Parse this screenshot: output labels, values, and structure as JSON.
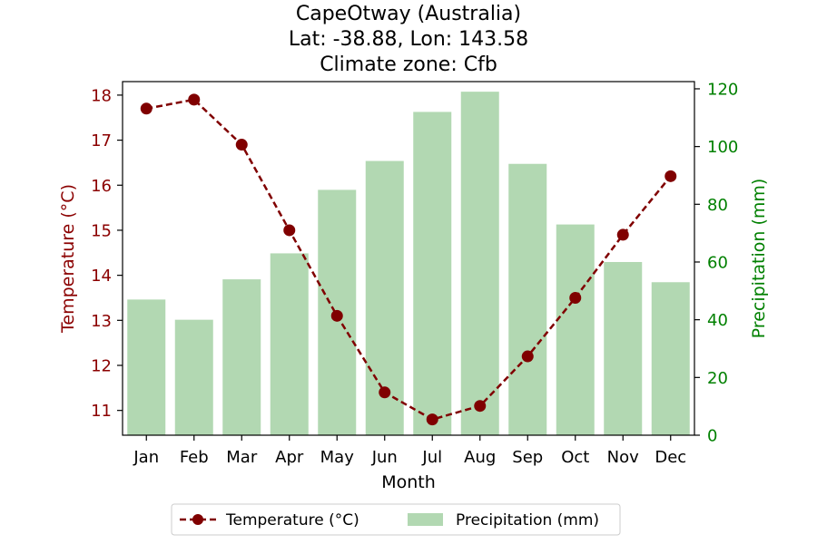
{
  "chart_data": {
    "type": "bar+line",
    "title": [
      "CapeOtway (Australia)",
      "Lat: -38.88, Lon: 143.58",
      "Climate zone: Cfb"
    ],
    "categories": [
      "Jan",
      "Feb",
      "Mar",
      "Apr",
      "May",
      "Jun",
      "Jul",
      "Aug",
      "Sep",
      "Oct",
      "Nov",
      "Dec"
    ],
    "xlabel": "Month",
    "ylabel_left": "Temperature (°C)",
    "ylabel_right": "Precipitation (mm)",
    "ylim_left": [
      10.45,
      18.3
    ],
    "ylim_right": [
      0,
      122.5
    ],
    "yticks_left": [
      11,
      12,
      13,
      14,
      15,
      16,
      17,
      18
    ],
    "yticks_right": [
      0,
      20,
      40,
      60,
      80,
      100,
      120
    ],
    "legend_position": "bottom-center",
    "grid": false,
    "series": [
      {
        "name": "Temperature (°C)",
        "type": "line",
        "axis": "left",
        "color": "#800000",
        "linestyle": "dashed",
        "marker": "circle",
        "values": [
          17.7,
          17.9,
          16.9,
          15.0,
          13.1,
          11.4,
          10.8,
          11.1,
          12.2,
          13.5,
          14.9,
          16.2
        ]
      },
      {
        "name": "Precipitation (mm)",
        "type": "bar",
        "axis": "right",
        "color": "#b2d8b2",
        "values": [
          47,
          40,
          54,
          63,
          85,
          95,
          112,
          119,
          94,
          73,
          60,
          53
        ]
      }
    ],
    "colors": {
      "left_axis": "#8b0000",
      "right_axis": "#008000"
    }
  }
}
